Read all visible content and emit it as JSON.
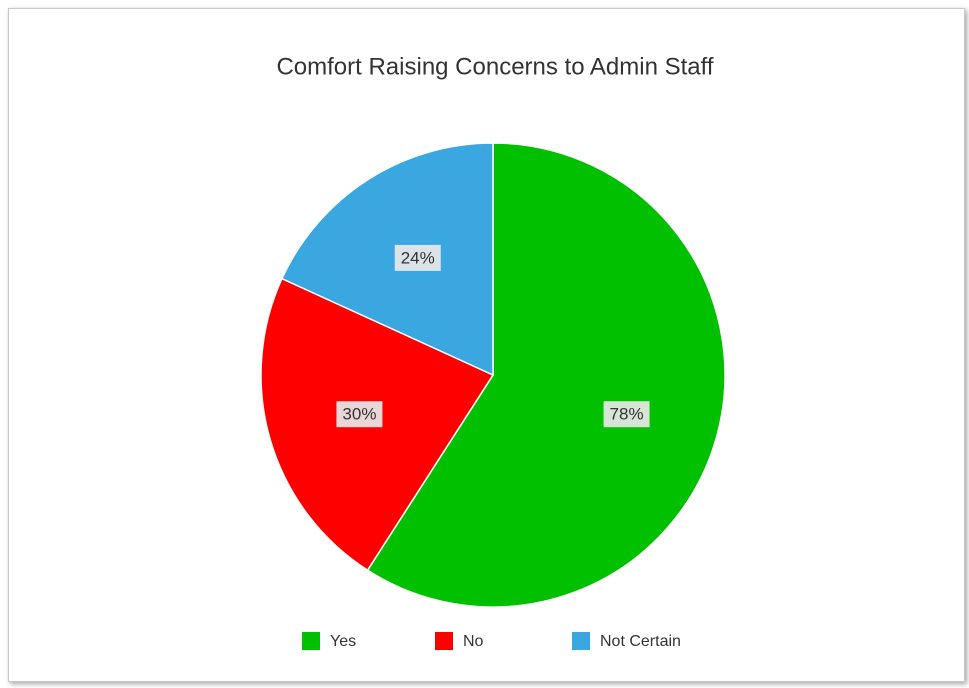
{
  "chart_data": {
    "type": "pie",
    "title": "Comfort Raising Concerns to Admin Staff",
    "categories": [
      "Yes",
      "No",
      "Not Certain"
    ],
    "values": [
      78,
      30,
      24
    ],
    "value_labels": [
      "78%",
      "30%",
      "24%"
    ],
    "colors": [
      "#00c000",
      "#ff0000",
      "#3ba7e0"
    ],
    "legend": "bottom"
  }
}
